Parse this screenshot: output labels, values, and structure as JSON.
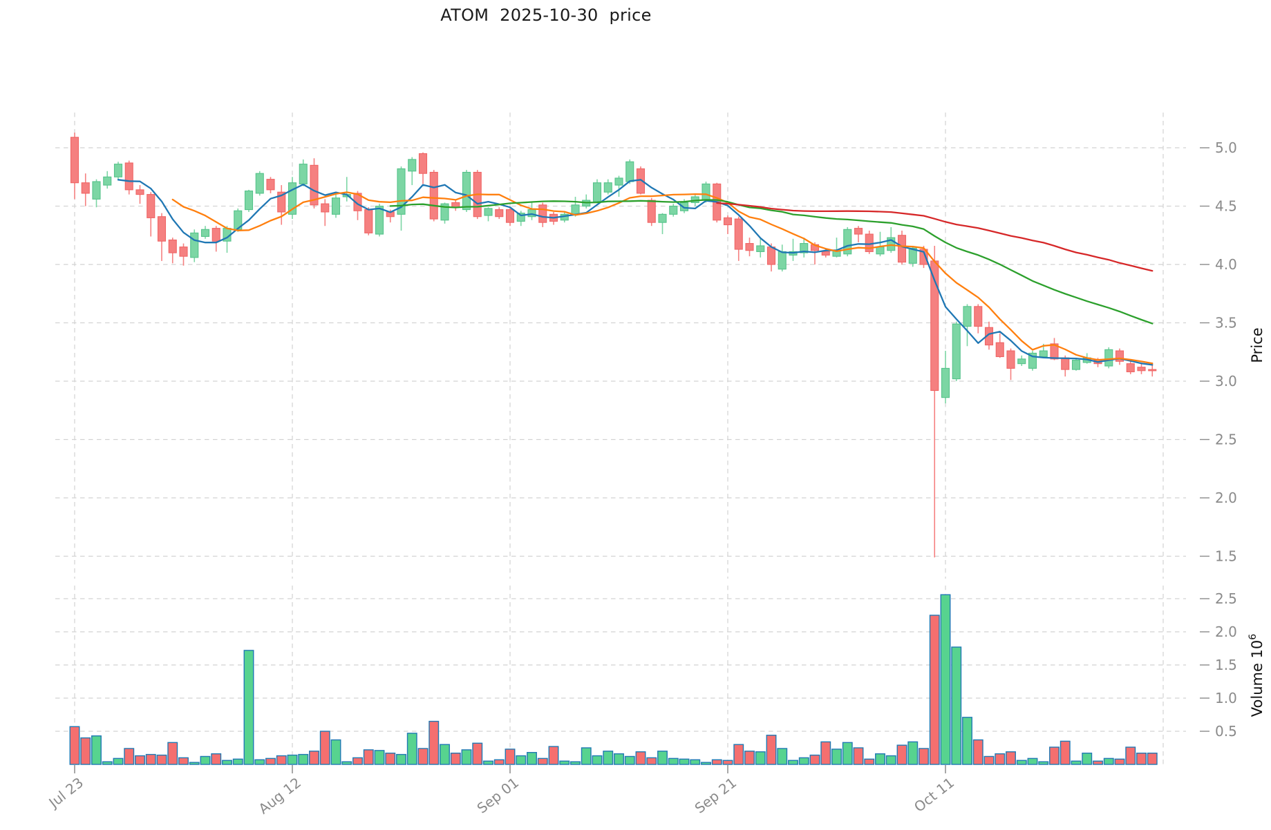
{
  "window": {
    "title": "ATOM  2025-10-30  price"
  },
  "chart_data": {
    "type": "candlestick",
    "title": "ATOM  2025-10-30  price",
    "legend": "none",
    "grid": "dashed",
    "x_axis": {
      "tick_labels": [
        "Jul 23",
        "Aug 12",
        "Sep 01",
        "Sep 21",
        "Oct 11"
      ],
      "tick_indices": [
        0,
        20,
        40,
        60,
        80
      ],
      "unlabeled_gridline_index": 100
    },
    "price_axis": {
      "label": "Price",
      "side": "right",
      "tick_labels": [
        "5.0",
        "4.5",
        "4.0",
        "3.5",
        "3.0",
        "2.5",
        "2.0",
        "1.5"
      ],
      "tick_values": [
        5.0,
        4.5,
        4.0,
        3.5,
        3.0,
        2.5,
        2.0,
        1.5
      ],
      "ylim": [
        1.31,
        5.3
      ]
    },
    "volume_axis": {
      "label": "Volume",
      "unit_base": "10",
      "unit_exponent": "6",
      "side": "right",
      "tick_labels": [
        "0.5",
        "1.0",
        "1.5",
        "2.0",
        "2.5"
      ],
      "tick_values": [
        0.5,
        1.0,
        1.5,
        2.0,
        2.5
      ],
      "ylim": [
        0,
        2.7
      ]
    },
    "moving_averages": {
      "windows": [
        5,
        10,
        30,
        60
      ],
      "colors": [
        "#1f77b4",
        "#ff7f0e",
        "#2ca02c",
        "#d62728"
      ]
    },
    "style": {
      "up_color": "#7cd6a4",
      "down_color": "#f58080",
      "up_edge": "#55c28a",
      "down_edge": "#ef6565",
      "volume_up": "#57d38f",
      "volume_down": "#f56f6f",
      "volume_edge": "#2079b4",
      "grid_color": "#d2d2d2",
      "tick_label_color": "#8a8a8a",
      "axis_label_color": "#111111",
      "background": "#ffffff"
    },
    "candles_format": [
      "open",
      "high",
      "low",
      "close",
      "volume_millions"
    ],
    "candles": [
      [
        5.09,
        5.13,
        4.56,
        4.7,
        0.57
      ],
      [
        4.7,
        4.78,
        4.5,
        4.61,
        0.4
      ],
      [
        4.56,
        4.73,
        4.49,
        4.71,
        0.43
      ],
      [
        4.68,
        4.8,
        4.65,
        4.75,
        0.04
      ],
      [
        4.75,
        4.88,
        4.72,
        4.86,
        0.09
      ],
      [
        4.87,
        4.89,
        4.6,
        4.64,
        0.24
      ],
      [
        4.64,
        4.68,
        4.52,
        4.6,
        0.13
      ],
      [
        4.6,
        4.62,
        4.24,
        4.4,
        0.15
      ],
      [
        4.41,
        4.44,
        4.03,
        4.2,
        0.14
      ],
      [
        4.21,
        4.23,
        4.01,
        4.1,
        0.33
      ],
      [
        4.15,
        4.18,
        3.99,
        4.07,
        0.1
      ],
      [
        4.06,
        4.3,
        4.02,
        4.27,
        0.03
      ],
      [
        4.24,
        4.33,
        4.22,
        4.3,
        0.12
      ],
      [
        4.31,
        4.33,
        4.11,
        4.2,
        0.16
      ],
      [
        4.2,
        4.33,
        4.1,
        4.31,
        0.06
      ],
      [
        4.3,
        4.48,
        4.28,
        4.46,
        0.08
      ],
      [
        4.47,
        4.64,
        4.45,
        4.63,
        1.72
      ],
      [
        4.61,
        4.8,
        4.59,
        4.78,
        0.07
      ],
      [
        4.73,
        4.75,
        4.61,
        4.64,
        0.09
      ],
      [
        4.62,
        4.68,
        4.34,
        4.45,
        0.13
      ],
      [
        4.43,
        4.75,
        4.39,
        4.7,
        0.14
      ],
      [
        4.69,
        4.9,
        4.67,
        4.86,
        0.15
      ],
      [
        4.85,
        4.91,
        4.48,
        4.51,
        0.2
      ],
      [
        4.52,
        4.56,
        4.33,
        4.45,
        0.5
      ],
      [
        4.43,
        4.61,
        4.4,
        4.57,
        0.37
      ],
      [
        4.58,
        4.75,
        4.54,
        4.6,
        0.04
      ],
      [
        4.61,
        4.63,
        4.38,
        4.46,
        0.1
      ],
      [
        4.47,
        4.49,
        4.25,
        4.27,
        0.22
      ],
      [
        4.26,
        4.52,
        4.24,
        4.5,
        0.21
      ],
      [
        4.45,
        4.47,
        4.36,
        4.41,
        0.17
      ],
      [
        4.43,
        4.84,
        4.29,
        4.82,
        0.15
      ],
      [
        4.8,
        4.92,
        4.68,
        4.9,
        0.47
      ],
      [
        4.95,
        4.96,
        4.69,
        4.78,
        0.24
      ],
      [
        4.79,
        4.81,
        4.37,
        4.39,
        0.65
      ],
      [
        4.38,
        4.53,
        4.35,
        4.52,
        0.3
      ],
      [
        4.53,
        4.55,
        4.46,
        4.49,
        0.17
      ],
      [
        4.47,
        4.81,
        4.45,
        4.79,
        0.22
      ],
      [
        4.79,
        4.81,
        4.39,
        4.41,
        0.32
      ],
      [
        4.42,
        4.49,
        4.37,
        4.48,
        0.05
      ],
      [
        4.47,
        4.49,
        4.39,
        4.41,
        0.07
      ],
      [
        4.47,
        4.49,
        4.33,
        4.36,
        0.23
      ],
      [
        4.37,
        4.46,
        4.33,
        4.44,
        0.13
      ],
      [
        4.41,
        4.53,
        4.38,
        4.47,
        0.18
      ],
      [
        4.51,
        4.53,
        4.32,
        4.36,
        0.09
      ],
      [
        4.43,
        4.45,
        4.34,
        4.37,
        0.27
      ],
      [
        4.38,
        4.45,
        4.36,
        4.43,
        0.05
      ],
      [
        4.43,
        4.58,
        4.41,
        4.51,
        0.04
      ],
      [
        4.5,
        4.6,
        4.48,
        4.55,
        0.25
      ],
      [
        4.54,
        4.73,
        4.53,
        4.7,
        0.13
      ],
      [
        4.62,
        4.73,
        4.6,
        4.7,
        0.2
      ],
      [
        4.68,
        4.76,
        4.58,
        4.74,
        0.16
      ],
      [
        4.71,
        4.9,
        4.69,
        4.88,
        0.12
      ],
      [
        4.82,
        4.84,
        4.6,
        4.61,
        0.19
      ],
      [
        4.55,
        4.57,
        4.33,
        4.36,
        0.1
      ],
      [
        4.36,
        4.44,
        4.26,
        4.43,
        0.2
      ],
      [
        4.43,
        4.52,
        4.41,
        4.5,
        0.09
      ],
      [
        4.46,
        4.56,
        4.44,
        4.53,
        0.08
      ],
      [
        4.53,
        4.6,
        4.5,
        4.58,
        0.07
      ],
      [
        4.55,
        4.71,
        4.53,
        4.69,
        0.03
      ],
      [
        4.69,
        4.7,
        4.36,
        4.38,
        0.07
      ],
      [
        4.4,
        4.42,
        4.26,
        4.34,
        0.06
      ],
      [
        4.39,
        4.41,
        4.03,
        4.13,
        0.3
      ],
      [
        4.18,
        4.23,
        4.07,
        4.12,
        0.2
      ],
      [
        4.11,
        4.22,
        4.06,
        4.16,
        0.19
      ],
      [
        4.15,
        4.18,
        3.94,
        4.0,
        0.44
      ],
      [
        3.96,
        4.17,
        3.94,
        4.11,
        0.24
      ],
      [
        4.08,
        4.22,
        4.03,
        4.11,
        0.06
      ],
      [
        4.1,
        4.23,
        4.06,
        4.18,
        0.1
      ],
      [
        4.17,
        4.19,
        4.0,
        4.12,
        0.14
      ],
      [
        4.11,
        4.14,
        4.06,
        4.08,
        0.34
      ],
      [
        4.07,
        4.23,
        4.06,
        4.12,
        0.23
      ],
      [
        4.09,
        4.32,
        4.07,
        4.3,
        0.33
      ],
      [
        4.31,
        4.33,
        4.19,
        4.26,
        0.25
      ],
      [
        4.26,
        4.29,
        4.09,
        4.11,
        0.08
      ],
      [
        4.09,
        4.28,
        4.07,
        4.15,
        0.16
      ],
      [
        4.12,
        4.32,
        4.1,
        4.23,
        0.13
      ],
      [
        4.25,
        4.29,
        4.0,
        4.02,
        0.29
      ],
      [
        4.01,
        4.16,
        3.98,
        4.14,
        0.34
      ],
      [
        4.13,
        4.16,
        3.97,
        4.0,
        0.24
      ],
      [
        4.03,
        4.16,
        1.49,
        2.92,
        2.25
      ],
      [
        2.86,
        3.26,
        2.81,
        3.11,
        2.56
      ],
      [
        3.02,
        3.51,
        3.0,
        3.49,
        1.77
      ],
      [
        3.47,
        3.66,
        3.3,
        3.64,
        0.71
      ],
      [
        3.64,
        3.66,
        3.41,
        3.47,
        0.37
      ],
      [
        3.46,
        3.51,
        3.27,
        3.31,
        0.12
      ],
      [
        3.33,
        3.41,
        3.2,
        3.21,
        0.16
      ],
      [
        3.26,
        3.28,
        3.01,
        3.11,
        0.19
      ],
      [
        3.15,
        3.22,
        3.13,
        3.19,
        0.06
      ],
      [
        3.11,
        3.26,
        3.09,
        3.24,
        0.09
      ],
      [
        3.21,
        3.32,
        3.2,
        3.26,
        0.04
      ],
      [
        3.32,
        3.37,
        3.18,
        3.19,
        0.26
      ],
      [
        3.2,
        3.22,
        3.04,
        3.1,
        0.35
      ],
      [
        3.1,
        3.2,
        3.09,
        3.18,
        0.05
      ],
      [
        3.16,
        3.24,
        3.15,
        3.2,
        0.17
      ],
      [
        3.18,
        3.2,
        3.12,
        3.15,
        0.05
      ],
      [
        3.13,
        3.29,
        3.11,
        3.27,
        0.09
      ],
      [
        3.26,
        3.28,
        3.14,
        3.17,
        0.08
      ],
      [
        3.15,
        3.17,
        3.06,
        3.08,
        0.26
      ],
      [
        3.12,
        3.16,
        3.06,
        3.09,
        0.17
      ],
      [
        3.1,
        3.16,
        3.04,
        3.09,
        0.17
      ]
    ]
  }
}
